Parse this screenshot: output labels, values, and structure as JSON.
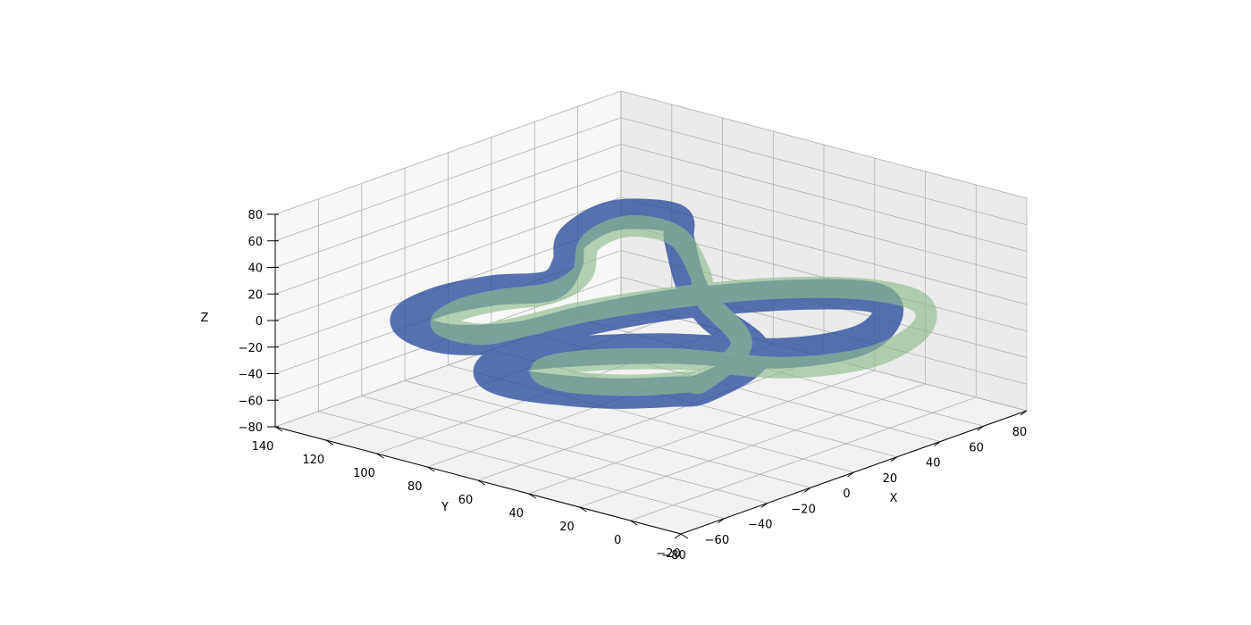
{
  "chart_data": {
    "type": "3d-surface-tubes",
    "xlabel": "X",
    "ylabel": "Y",
    "zlabel": "Z",
    "x_ticks": [
      -80,
      -60,
      -40,
      -20,
      0,
      20,
      40,
      60,
      80
    ],
    "y_ticks": [
      -20,
      0,
      20,
      40,
      60,
      80,
      100,
      120,
      140
    ],
    "z_ticks": [
      -80,
      -60,
      -40,
      -20,
      0,
      20,
      40,
      60,
      80
    ],
    "xlim": [
      -80,
      80
    ],
    "ylim": [
      -20,
      140
    ],
    "zlim": [
      -80,
      80
    ],
    "grid": true,
    "series": [
      {
        "color": "#2f4f9f",
        "points": [
          [
            -45,
            0,
            0
          ],
          [
            -10,
            10,
            0
          ],
          [
            10,
            45,
            0
          ],
          [
            30,
            70,
            0
          ],
          [
            60,
            100,
            0
          ],
          [
            75,
            115,
            0
          ],
          [
            65,
            130,
            0
          ],
          [
            40,
            125,
            0
          ],
          [
            20,
            110,
            0
          ],
          [
            0,
            100,
            0
          ],
          [
            -15,
            110,
            0
          ],
          [
            -35,
            115,
            0
          ],
          [
            -55,
            110,
            0
          ],
          [
            -60,
            90,
            0
          ],
          [
            -45,
            75,
            0
          ],
          [
            -20,
            70,
            0
          ],
          [
            10,
            60,
            0
          ],
          [
            40,
            40,
            0
          ],
          [
            55,
            20,
            0
          ],
          [
            45,
            5,
            0
          ],
          [
            20,
            -5,
            0
          ],
          [
            -5,
            5,
            0
          ],
          [
            -25,
            35,
            0
          ],
          [
            -55,
            60,
            0
          ],
          [
            -75,
            60,
            0
          ],
          [
            -80,
            45,
            0
          ],
          [
            -70,
            20,
            0
          ],
          [
            -55,
            5,
            0
          ]
        ]
      },
      {
        "color": "#8fbc8f",
        "points": [
          [
            -40,
            5,
            0
          ],
          [
            -5,
            20,
            0
          ],
          [
            20,
            55,
            0
          ],
          [
            40,
            75,
            0
          ],
          [
            62,
            103,
            0
          ],
          [
            60,
            120,
            0
          ],
          [
            40,
            118,
            0
          ],
          [
            15,
            100,
            0
          ],
          [
            -5,
            95,
            0
          ],
          [
            -20,
            102,
            0
          ],
          [
            -35,
            105,
            0
          ],
          [
            -50,
            100,
            0
          ],
          [
            -50,
            85,
            0
          ],
          [
            -35,
            80,
            0
          ],
          [
            -10,
            75,
            0
          ],
          [
            20,
            62,
            0
          ],
          [
            45,
            45,
            0
          ],
          [
            60,
            25,
            0
          ],
          [
            60,
            5,
            0
          ],
          [
            40,
            -12,
            0
          ],
          [
            10,
            -18,
            0
          ],
          [
            -15,
            -5,
            0
          ],
          [
            -30,
            25,
            0
          ],
          [
            -50,
            45,
            0
          ],
          [
            -65,
            48,
            0
          ],
          [
            -68,
            35,
            0
          ],
          [
            -58,
            18,
            0
          ],
          [
            -45,
            8,
            0
          ]
        ]
      }
    ]
  }
}
